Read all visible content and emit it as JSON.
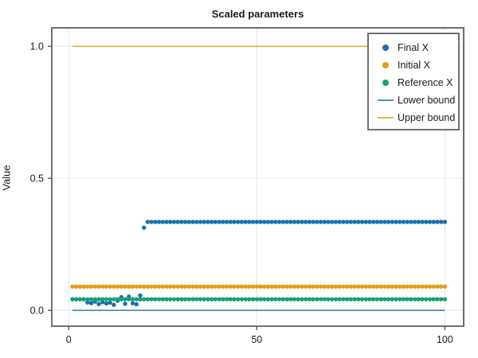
{
  "chart_data": {
    "type": "scatter",
    "title": "Scaled parameters",
    "xlabel": "",
    "ylabel": "Value",
    "xlim": [
      -4.5,
      105
    ],
    "ylim": [
      -0.06,
      1.07
    ],
    "xticks": [
      0,
      50,
      100
    ],
    "xtick_labels": [
      "0",
      "50",
      "100"
    ],
    "yticks": [
      0,
      0.5,
      1
    ],
    "ytick_labels": [
      "0.0",
      "0.5",
      "1.0"
    ],
    "grid": true,
    "grid_color": "#e7e7e7",
    "spine_color": "#5e5e5e",
    "legend_position": "upper right",
    "series": [
      {
        "name": "Final X",
        "kind": "scatter",
        "color": "#1b70ae",
        "x_start": 1,
        "values": [
          0.042,
          0.042,
          0.042,
          0.042,
          0.03,
          0.027,
          0.033,
          0.024,
          0.031,
          0.026,
          0.029,
          0.021,
          0.036,
          0.05,
          0.025,
          0.052,
          0.027,
          0.023,
          0.056,
          0.313,
          0.335,
          0.335,
          0.335,
          0.335,
          0.335,
          0.335,
          0.335,
          0.335,
          0.335,
          0.335,
          0.335,
          0.335,
          0.335,
          0.335,
          0.335,
          0.335,
          0.335,
          0.335,
          0.335,
          0.335,
          0.335,
          0.335,
          0.335,
          0.335,
          0.335,
          0.335,
          0.335,
          0.335,
          0.335,
          0.335,
          0.335,
          0.335,
          0.335,
          0.335,
          0.335,
          0.335,
          0.335,
          0.335,
          0.335,
          0.335,
          0.335,
          0.335,
          0.335,
          0.335,
          0.335,
          0.335,
          0.335,
          0.335,
          0.335,
          0.335,
          0.335,
          0.335,
          0.335,
          0.335,
          0.335,
          0.335,
          0.335,
          0.335,
          0.335,
          0.335,
          0.335,
          0.335,
          0.335,
          0.335,
          0.335,
          0.335,
          0.335,
          0.335,
          0.335,
          0.335,
          0.335,
          0.335,
          0.335,
          0.335,
          0.335,
          0.335,
          0.335,
          0.335,
          0.335,
          0.335
        ]
      },
      {
        "name": "Initial X",
        "kind": "scatter",
        "color": "#e49c15",
        "x_start": 1,
        "x_end": 100,
        "constant": 0.09
      },
      {
        "name": "Reference X",
        "kind": "scatter",
        "color": "#17a077",
        "x_start": 1,
        "x_end": 100,
        "constant": 0.042
      },
      {
        "name": "Lower bound",
        "kind": "line",
        "color": "#4e8fae",
        "y_value": 0.0,
        "x_range": [
          1,
          100
        ]
      },
      {
        "name": "Upper bound",
        "kind": "line",
        "color": "#ddb65c",
        "y_value": 1.0,
        "x_range": [
          1,
          100
        ]
      }
    ]
  }
}
